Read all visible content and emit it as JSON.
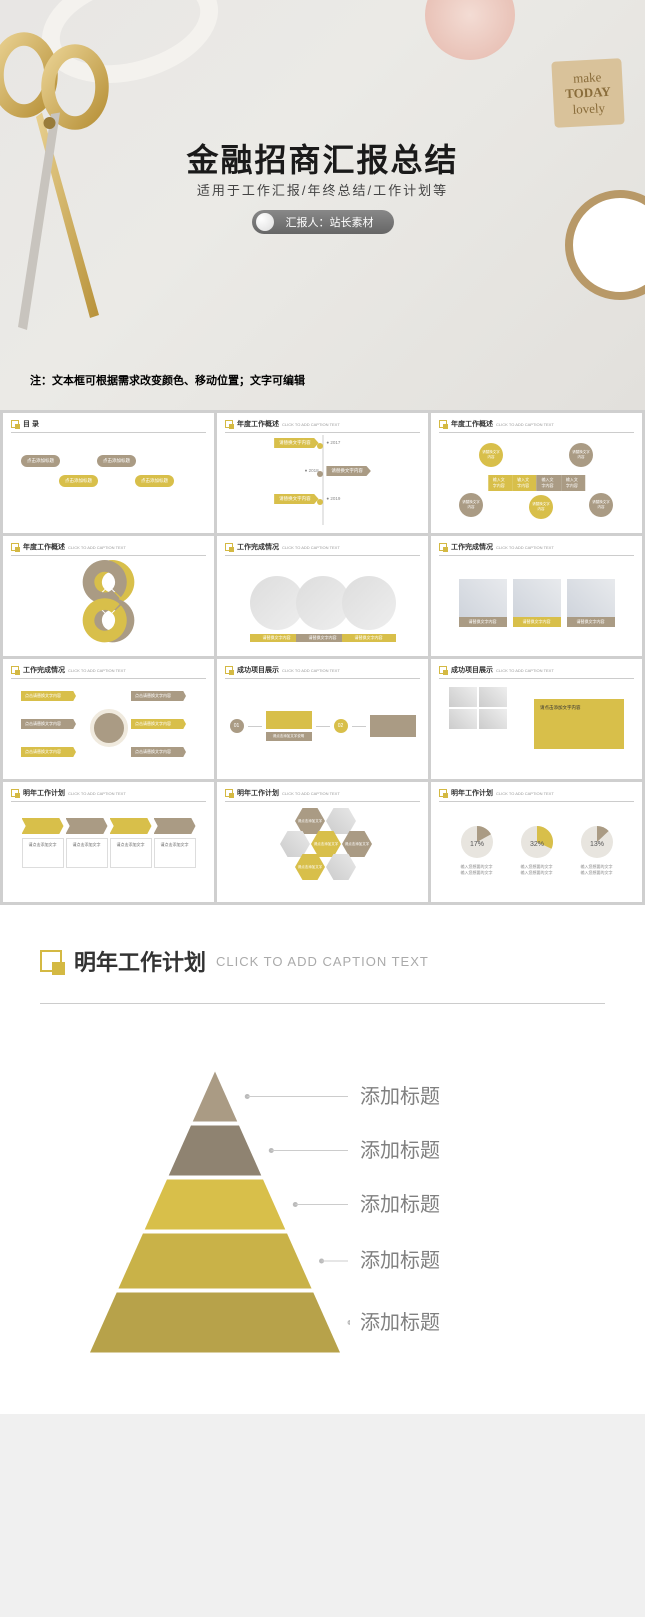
{
  "colors": {
    "gold": "#d8bf4a",
    "brown": "#aa9b84",
    "brownD": "#8f8068",
    "goldD": "#c4a830",
    "grey": "#888",
    "bg": "#ebeae6"
  },
  "cover": {
    "title": "金融招商汇报总结",
    "subtitle": "适用于工作汇报/年终总结/工作计划等",
    "presenter": "汇报人：站长素材",
    "note": "注：文本框可根据需求改变颜色、移动位置；文字可编辑",
    "stamp_l1": "make",
    "stamp_l2": "TODAY",
    "stamp_l3": "lovely"
  },
  "thumbs": [
    {
      "t": "目 录",
      "s": "",
      "kind": "toc",
      "items": [
        "点击添加标题",
        "点击添加标题",
        "点击添加标题",
        "点击添加标题"
      ]
    },
    {
      "t": "年度工作概述",
      "s": "CLICK TO ADD CAPTION TEXT",
      "kind": "timeline",
      "years": [
        "2017",
        "2018",
        "2019"
      ],
      "txt": "请替换文字内容"
    },
    {
      "t": "年度工作概述",
      "s": "CLICK TO ADD CAPTION TEXT",
      "kind": "bubbles",
      "bar": [
        "输入文字内容",
        "输入文字内容",
        "输入文字内容",
        "输入文字内容"
      ],
      "circ": "请替换文字内容"
    },
    {
      "t": "年度工作概述",
      "s": "CLICK TO ADD CAPTION TEXT",
      "kind": "knot",
      "labels": [
        "文字内容",
        "文字内容",
        "文字内容",
        "文字内容"
      ]
    },
    {
      "t": "工作完成情况",
      "s": "CLICK TO ADD CAPTION TEXT",
      "kind": "circles3",
      "txt": [
        "请替换文字内容",
        "请替换文字内容",
        "请替换文字内容"
      ]
    },
    {
      "t": "工作完成情况",
      "s": "CLICK TO ADD CAPTION TEXT",
      "kind": "cards3",
      "txt": [
        "请替换文字内容",
        "请替换文字内容",
        "请替换文字内容"
      ]
    },
    {
      "t": "工作完成情况",
      "s": "CLICK TO ADD CAPTION TEXT",
      "kind": "spoke",
      "txt": "点击请替换文字内容"
    },
    {
      "t": "成功项目展示",
      "s": "CLICK TO ADD CAPTION TEXT",
      "kind": "flow",
      "num": [
        "01",
        "02",
        "03"
      ],
      "txt": "请点击添加文字说明"
    },
    {
      "t": "成功项目展示",
      "s": "CLICK TO ADD CAPTION TEXT",
      "kind": "imgblk",
      "txt": "请点击添加文字内容"
    },
    {
      "t": "明年工作计划",
      "s": "CLICK TO ADD CAPTION TEXT",
      "kind": "arrows4",
      "txt": "请点击添加文字"
    },
    {
      "t": "明年工作计划",
      "s": "CLICK TO ADD CAPTION TEXT",
      "kind": "hex",
      "txt": "请点击添加文字"
    },
    {
      "t": "明年工作计划",
      "s": "CLICK TO ADD CAPTION TEXT",
      "kind": "pies",
      "vals": [
        "17%",
        "32%",
        "13%"
      ],
      "txt": [
        "输入您想要的文字",
        "输入您想要的文字",
        "输入您想要的文字"
      ]
    }
  ],
  "detail": {
    "title": "明年工作计划",
    "sub": "CLICK TO ADD CAPTION TEXT",
    "labels": [
      "添加标题",
      "添加标题",
      "添加标题",
      "添加标题",
      "添加标题"
    ],
    "layer_colors": [
      "#aa9b84",
      "#8f8371",
      "#d8bf4a",
      "#c9b248",
      "#b7a24a"
    ],
    "heights": [
      50,
      50,
      50,
      55,
      60
    ]
  }
}
